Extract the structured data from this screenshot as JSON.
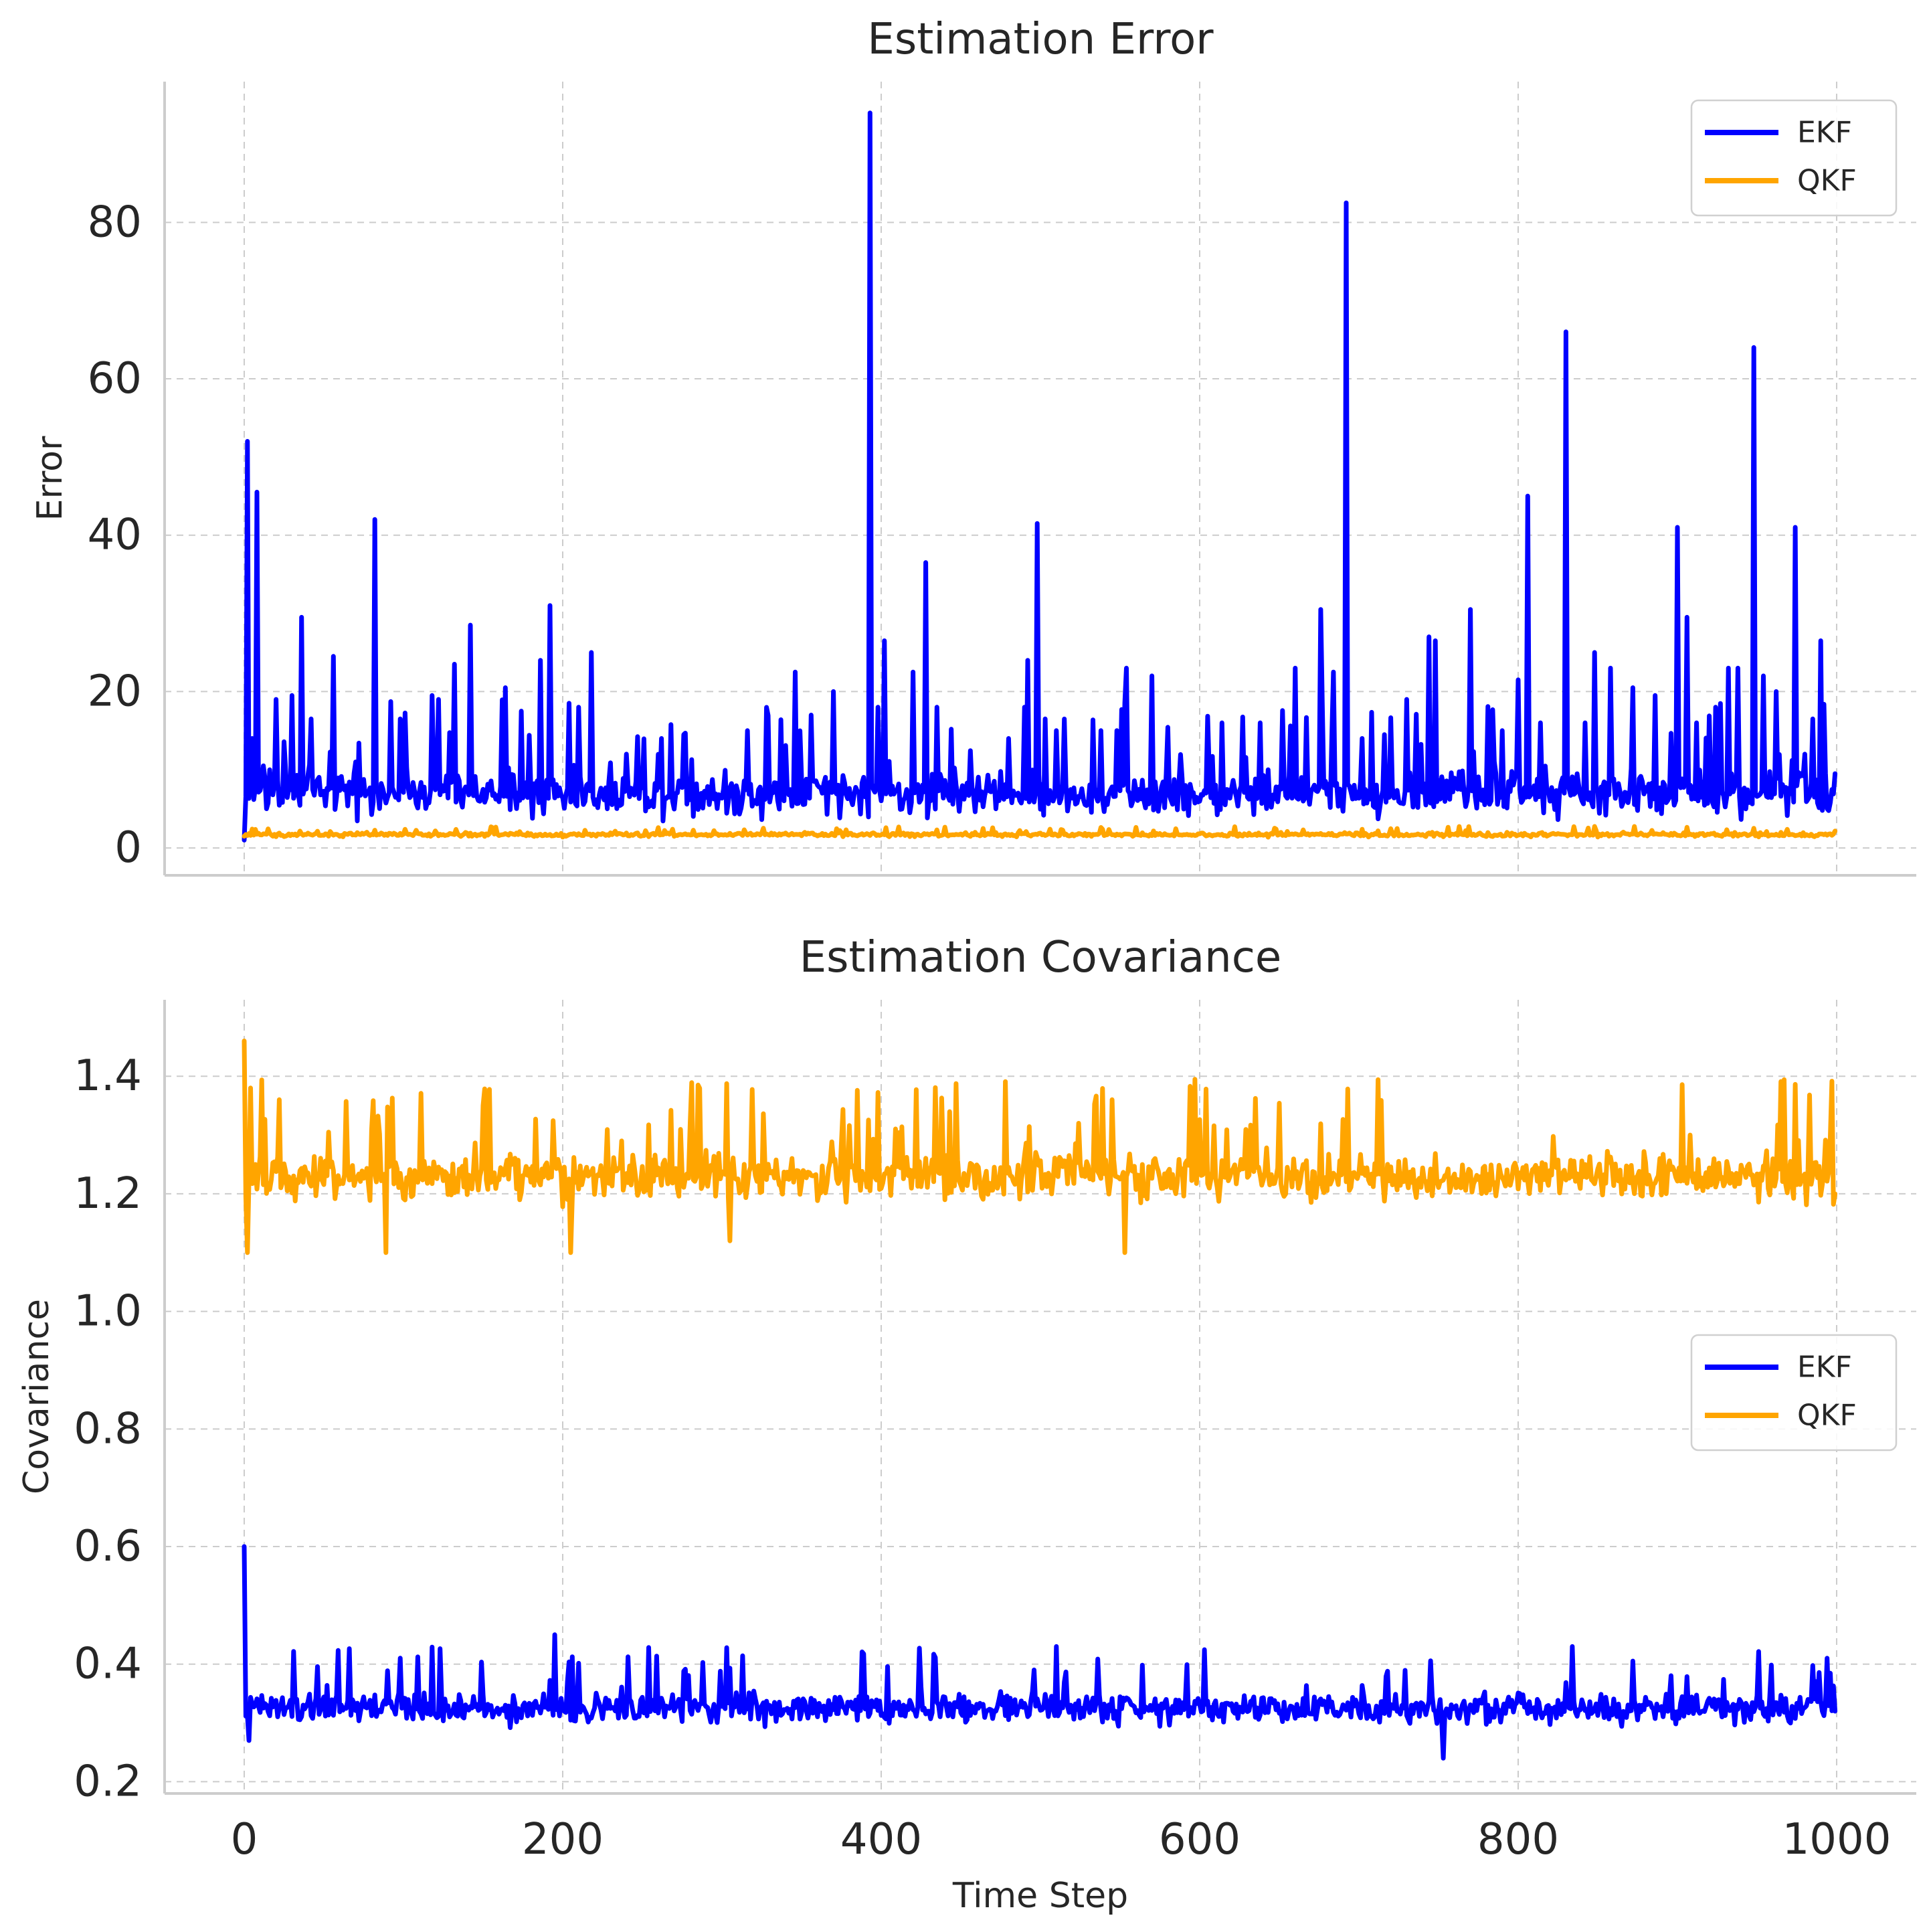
{
  "chart_data": [
    {
      "type": "line",
      "title": "Estimation Error",
      "xlabel": "",
      "ylabel": "Error",
      "xlim": [
        -50,
        1050
      ],
      "ylim": [
        -3.5,
        98
      ],
      "xticks": [
        0,
        200,
        400,
        600,
        800,
        1000
      ],
      "xtick_labels_visible": false,
      "yticks": [
        0,
        20,
        40,
        60,
        80
      ],
      "grid": true,
      "legend_position": "upper right",
      "x_range": [
        0,
        999
      ],
      "series": [
        {
          "name": "EKF",
          "color": "#0000ff",
          "baseline": 7,
          "noise": 4,
          "spikes": [
            [
              0,
              1
            ],
            [
              2,
              52
            ],
            [
              5,
              14
            ],
            [
              8,
              45.5
            ],
            [
              12,
              10.5
            ],
            [
              16,
              10
            ],
            [
              20,
              19
            ],
            [
              26,
              10
            ],
            [
              30,
              19.5
            ],
            [
              36,
              29.5
            ],
            [
              42,
              16.5
            ],
            [
              56,
              24.5
            ],
            [
              70,
              11
            ],
            [
              82,
              42
            ],
            [
              98,
              16.5
            ],
            [
              118,
              19.5
            ],
            [
              122,
              19
            ],
            [
              132,
              23.5
            ],
            [
              142,
              28.5
            ],
            [
              164,
              20.5
            ],
            [
              174,
              17.5
            ],
            [
              186,
              24
            ],
            [
              192,
              31
            ],
            [
              204,
              18.5
            ],
            [
              210,
              18
            ],
            [
              218,
              25
            ],
            [
              240,
              12
            ],
            [
              262,
              14
            ],
            [
              276,
              14.5
            ],
            [
              316,
              15
            ],
            [
              346,
              22.5
            ],
            [
              356,
              17
            ],
            [
              370,
              20
            ],
            [
              393,
              94
            ],
            [
              398,
              18
            ],
            [
              402,
              26.5
            ],
            [
              420,
              22.5
            ],
            [
              428,
              36.5
            ],
            [
              435,
              18
            ],
            [
              480,
              14
            ],
            [
              490,
              18
            ],
            [
              492,
              24
            ],
            [
              498,
              41.5
            ],
            [
              503,
              16.5
            ],
            [
              510,
              15
            ],
            [
              538,
              15
            ],
            [
              548,
              15
            ],
            [
              554,
              23
            ],
            [
              570,
              22
            ],
            [
              614,
              16
            ],
            [
              638,
              16
            ],
            [
              660,
              23
            ],
            [
              676,
              30.5
            ],
            [
              684,
              22.5
            ],
            [
              692,
              82.5
            ],
            [
              702,
              14
            ],
            [
              716,
              14.5
            ],
            [
              730,
              19
            ],
            [
              744,
              27
            ],
            [
              748,
              26.5
            ],
            [
              770,
              30.5
            ],
            [
              790,
              15
            ],
            [
              800,
              21.5
            ],
            [
              806,
              45
            ],
            [
              814,
              16
            ],
            [
              830,
              66
            ],
            [
              842,
              16
            ],
            [
              848,
              25
            ],
            [
              858,
              23
            ],
            [
              872,
              20.5
            ],
            [
              886,
              19.5
            ],
            [
              900,
              41
            ],
            [
              906,
              29.5
            ],
            [
              912,
              16
            ],
            [
              924,
              18
            ],
            [
              932,
              23
            ],
            [
              938,
              23
            ],
            [
              948,
              64
            ],
            [
              954,
              22
            ],
            [
              962,
              20
            ],
            [
              974,
              41
            ],
            [
              980,
              12
            ],
            [
              985,
              16.5
            ],
            [
              990,
              26.5
            ],
            [
              999,
              9.5
            ]
          ]
        },
        {
          "name": "QKF",
          "color": "#ffa500",
          "baseline": 1.7,
          "noise": 0.35,
          "spikes": [
            [
              0,
              1.5
            ]
          ]
        }
      ]
    },
    {
      "type": "line",
      "title": "Estimation Covariance",
      "xlabel": "Time Step",
      "ylabel": "Covariance",
      "xlim": [
        -50,
        1050
      ],
      "ylim": [
        0.18,
        1.53
      ],
      "xticks": [
        0,
        200,
        400,
        600,
        800,
        1000
      ],
      "yticks": [
        0.2,
        0.4,
        0.6,
        0.8,
        1.0,
        1.2,
        1.4
      ],
      "grid": true,
      "legend_position": "center right",
      "x_range": [
        0,
        999
      ],
      "series": [
        {
          "name": "EKF",
          "color": "#0000ff",
          "baseline": 0.325,
          "noise": 0.035,
          "spikes": [
            [
              0,
              0.6
            ],
            [
              3,
              0.27
            ],
            [
              195,
              0.45
            ],
            [
              510,
              0.43
            ],
            [
              753,
              0.24
            ],
            [
              834,
              0.43
            ],
            [
              994,
              0.41
            ],
            [
              999,
              0.32
            ]
          ]
        },
        {
          "name": "QKF",
          "color": "#ffa500",
          "baseline": 1.23,
          "noise": 0.055,
          "spikes": [
            [
              0,
              1.46
            ],
            [
              2,
              1.1
            ],
            [
              4,
              1.38
            ],
            [
              22,
              1.36
            ],
            [
              89,
              1.1
            ],
            [
              150,
              1.35
            ],
            [
              205,
              1.1
            ],
            [
              305,
              1.12
            ],
            [
              545,
              1.36
            ],
            [
              553,
              1.1
            ],
            [
              999,
              1.2
            ]
          ]
        }
      ]
    }
  ]
}
